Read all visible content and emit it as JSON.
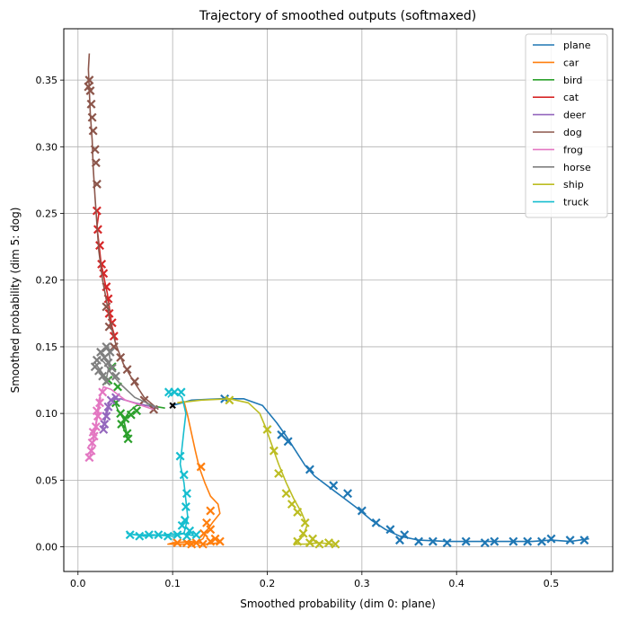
{
  "chart_data": {
    "type": "line",
    "title": "Trajectory of smoothed outputs (softmaxed)",
    "xlabel": "Smoothed probability (dim 0: plane)",
    "ylabel": "Smoothed probability (dim 5: dog)",
    "xlim": [
      -0.015,
      0.565
    ],
    "ylim": [
      -0.0185,
      0.3885
    ],
    "xticks": [
      0.0,
      0.1,
      0.2,
      0.3,
      0.4,
      0.5
    ],
    "xtick_labels": [
      "0.0",
      "0.1",
      "0.2",
      "0.3",
      "0.4",
      "0.5"
    ],
    "yticks": [
      0.0,
      0.05,
      0.1,
      0.15,
      0.2,
      0.25,
      0.3,
      0.35
    ],
    "ytick_labels": [
      "0.00",
      "0.05",
      "0.10",
      "0.15",
      "0.20",
      "0.25",
      "0.30",
      "0.35"
    ],
    "grid": true,
    "legend_position": "top-right",
    "markers": "x",
    "series": [
      {
        "name": "plane",
        "color": "#1f77b4",
        "points": [
          [
            0.1,
            0.106
          ],
          [
            0.12,
            0.11
          ],
          [
            0.15,
            0.111
          ],
          [
            0.175,
            0.111
          ],
          [
            0.195,
            0.106
          ],
          [
            0.21,
            0.093
          ],
          [
            0.22,
            0.083
          ],
          [
            0.23,
            0.072
          ],
          [
            0.24,
            0.061
          ],
          [
            0.25,
            0.053
          ],
          [
            0.265,
            0.045
          ],
          [
            0.28,
            0.037
          ],
          [
            0.295,
            0.029
          ],
          [
            0.31,
            0.02
          ],
          [
            0.325,
            0.013
          ],
          [
            0.34,
            0.008
          ],
          [
            0.36,
            0.005
          ],
          [
            0.39,
            0.004
          ],
          [
            0.42,
            0.004
          ],
          [
            0.45,
            0.004
          ],
          [
            0.48,
            0.004
          ],
          [
            0.5,
            0.005
          ],
          [
            0.52,
            0.004
          ],
          [
            0.54,
            0.006
          ]
        ],
        "marker_points": [
          [
            0.155,
            0.111
          ],
          [
            0.215,
            0.084
          ],
          [
            0.222,
            0.079
          ],
          [
            0.245,
            0.058
          ],
          [
            0.27,
            0.046
          ],
          [
            0.285,
            0.04
          ],
          [
            0.3,
            0.027
          ],
          [
            0.315,
            0.018
          ],
          [
            0.33,
            0.013
          ],
          [
            0.345,
            0.009
          ],
          [
            0.34,
            0.005
          ],
          [
            0.36,
            0.004
          ],
          [
            0.375,
            0.004
          ],
          [
            0.39,
            0.003
          ],
          [
            0.41,
            0.004
          ],
          [
            0.43,
            0.003
          ],
          [
            0.44,
            0.004
          ],
          [
            0.46,
            0.004
          ],
          [
            0.475,
            0.004
          ],
          [
            0.49,
            0.004
          ],
          [
            0.5,
            0.006
          ],
          [
            0.52,
            0.005
          ],
          [
            0.535,
            0.005
          ]
        ]
      },
      {
        "name": "car",
        "color": "#ff7f0e",
        "points": [
          [
            0.105,
            0.108
          ],
          [
            0.112,
            0.109
          ],
          [
            0.116,
            0.098
          ],
          [
            0.12,
            0.085
          ],
          [
            0.124,
            0.072
          ],
          [
            0.128,
            0.06
          ],
          [
            0.134,
            0.048
          ],
          [
            0.14,
            0.038
          ],
          [
            0.148,
            0.032
          ],
          [
            0.15,
            0.025
          ],
          [
            0.142,
            0.018
          ],
          [
            0.136,
            0.012
          ],
          [
            0.132,
            0.006
          ],
          [
            0.125,
            0.003
          ],
          [
            0.11,
            0.002
          ],
          [
            0.095,
            0.002
          ],
          [
            0.1,
            0.003
          ],
          [
            0.12,
            0.004
          ],
          [
            0.135,
            0.002
          ],
          [
            0.15,
            0.003
          ]
        ],
        "marker_points": [
          [
            0.13,
            0.06
          ],
          [
            0.14,
            0.027
          ],
          [
            0.136,
            0.018
          ],
          [
            0.14,
            0.013
          ],
          [
            0.133,
            0.01
          ],
          [
            0.145,
            0.006
          ],
          [
            0.125,
            0.003
          ],
          [
            0.115,
            0.003
          ],
          [
            0.105,
            0.003
          ],
          [
            0.132,
            0.002
          ],
          [
            0.14,
            0.004
          ],
          [
            0.15,
            0.004
          ],
          [
            0.12,
            0.002
          ]
        ]
      },
      {
        "name": "bird",
        "color": "#2ca02c",
        "points": [
          [
            0.092,
            0.104
          ],
          [
            0.075,
            0.106
          ],
          [
            0.062,
            0.106
          ],
          [
            0.055,
            0.102
          ],
          [
            0.05,
            0.097
          ],
          [
            0.046,
            0.092
          ],
          [
            0.05,
            0.086
          ],
          [
            0.053,
            0.081
          ],
          [
            0.048,
            0.096
          ],
          [
            0.042,
            0.103
          ],
          [
            0.038,
            0.11
          ]
        ],
        "marker_points": [
          [
            0.062,
            0.102
          ],
          [
            0.056,
            0.099
          ],
          [
            0.05,
            0.096
          ],
          [
            0.046,
            0.092
          ],
          [
            0.052,
            0.085
          ],
          [
            0.053,
            0.081
          ],
          [
            0.045,
            0.1
          ],
          [
            0.04,
            0.108
          ],
          [
            0.042,
            0.12
          ],
          [
            0.036,
            0.135
          ],
          [
            0.032,
            0.125
          ]
        ]
      },
      {
        "name": "cat",
        "color": "#d62728",
        "points": [
          [
            0.022,
            0.25
          ],
          [
            0.02,
            0.24
          ],
          [
            0.022,
            0.228
          ],
          [
            0.024,
            0.215
          ],
          [
            0.028,
            0.2
          ],
          [
            0.031,
            0.19
          ],
          [
            0.034,
            0.175
          ],
          [
            0.036,
            0.165
          ],
          [
            0.04,
            0.155
          ]
        ],
        "marker_points": [
          [
            0.02,
            0.252
          ],
          [
            0.021,
            0.238
          ],
          [
            0.023,
            0.226
          ],
          [
            0.025,
            0.212
          ],
          [
            0.027,
            0.205
          ],
          [
            0.03,
            0.195
          ],
          [
            0.032,
            0.186
          ],
          [
            0.033,
            0.175
          ],
          [
            0.036,
            0.168
          ],
          [
            0.038,
            0.158
          ]
        ]
      },
      {
        "name": "deer",
        "color": "#9467bd",
        "points": [
          [
            0.085,
            0.104
          ],
          [
            0.06,
            0.108
          ],
          [
            0.045,
            0.111
          ],
          [
            0.034,
            0.11
          ],
          [
            0.03,
            0.102
          ],
          [
            0.028,
            0.094
          ],
          [
            0.026,
            0.088
          ],
          [
            0.03,
            0.099
          ],
          [
            0.034,
            0.107
          ]
        ],
        "marker_points": [
          [
            0.032,
            0.105
          ],
          [
            0.03,
            0.098
          ],
          [
            0.028,
            0.092
          ],
          [
            0.027,
            0.088
          ],
          [
            0.035,
            0.11
          ],
          [
            0.04,
            0.112
          ]
        ]
      },
      {
        "name": "dog",
        "color": "#8c564b",
        "points": [
          [
            0.085,
            0.103
          ],
          [
            0.07,
            0.112
          ],
          [
            0.058,
            0.125
          ],
          [
            0.048,
            0.137
          ],
          [
            0.04,
            0.152
          ],
          [
            0.034,
            0.168
          ],
          [
            0.03,
            0.185
          ],
          [
            0.026,
            0.2
          ],
          [
            0.022,
            0.222
          ],
          [
            0.02,
            0.242
          ],
          [
            0.018,
            0.262
          ],
          [
            0.016,
            0.285
          ],
          [
            0.015,
            0.305
          ],
          [
            0.013,
            0.325
          ],
          [
            0.012,
            0.342
          ],
          [
            0.011,
            0.358
          ],
          [
            0.012,
            0.37
          ]
        ],
        "marker_points": [
          [
            0.08,
            0.103
          ],
          [
            0.07,
            0.11
          ],
          [
            0.06,
            0.124
          ],
          [
            0.052,
            0.133
          ],
          [
            0.045,
            0.142
          ],
          [
            0.038,
            0.15
          ],
          [
            0.033,
            0.165
          ],
          [
            0.03,
            0.18
          ],
          [
            0.02,
            0.272
          ],
          [
            0.019,
            0.288
          ],
          [
            0.018,
            0.298
          ],
          [
            0.016,
            0.312
          ],
          [
            0.015,
            0.322
          ],
          [
            0.014,
            0.332
          ],
          [
            0.013,
            0.342
          ],
          [
            0.012,
            0.35
          ],
          [
            0.011,
            0.345
          ]
        ]
      },
      {
        "name": "frog",
        "color": "#e377c2",
        "points": [
          [
            0.08,
            0.103
          ],
          [
            0.05,
            0.11
          ],
          [
            0.035,
            0.118
          ],
          [
            0.027,
            0.12
          ],
          [
            0.022,
            0.11
          ],
          [
            0.02,
            0.098
          ],
          [
            0.018,
            0.088
          ],
          [
            0.016,
            0.08
          ],
          [
            0.014,
            0.072
          ],
          [
            0.012,
            0.066
          ],
          [
            0.015,
            0.075
          ],
          [
            0.02,
            0.095
          ],
          [
            0.024,
            0.112
          ]
        ],
        "marker_points": [
          [
            0.026,
            0.116
          ],
          [
            0.023,
            0.108
          ],
          [
            0.021,
            0.098
          ],
          [
            0.019,
            0.09
          ],
          [
            0.017,
            0.083
          ],
          [
            0.015,
            0.078
          ],
          [
            0.014,
            0.072
          ],
          [
            0.012,
            0.067
          ],
          [
            0.016,
            0.086
          ],
          [
            0.02,
            0.102
          ]
        ]
      },
      {
        "name": "horse",
        "color": "#7f7f7f",
        "points": [
          [
            0.085,
            0.104
          ],
          [
            0.06,
            0.112
          ],
          [
            0.045,
            0.122
          ],
          [
            0.035,
            0.13
          ],
          [
            0.028,
            0.138
          ],
          [
            0.022,
            0.142
          ],
          [
            0.018,
            0.138
          ],
          [
            0.024,
            0.132
          ],
          [
            0.03,
            0.126
          ],
          [
            0.034,
            0.14
          ],
          [
            0.032,
            0.15
          ],
          [
            0.026,
            0.146
          ]
        ],
        "marker_points": [
          [
            0.04,
            0.128
          ],
          [
            0.036,
            0.134
          ],
          [
            0.032,
            0.138
          ],
          [
            0.028,
            0.142
          ],
          [
            0.024,
            0.146
          ],
          [
            0.02,
            0.14
          ],
          [
            0.018,
            0.135
          ],
          [
            0.026,
            0.128
          ],
          [
            0.03,
            0.124
          ],
          [
            0.034,
            0.146
          ],
          [
            0.03,
            0.15
          ],
          [
            0.022,
            0.132
          ]
        ]
      },
      {
        "name": "ship",
        "color": "#bcbd22",
        "points": [
          [
            0.105,
            0.108
          ],
          [
            0.13,
            0.11
          ],
          [
            0.16,
            0.111
          ],
          [
            0.18,
            0.108
          ],
          [
            0.192,
            0.1
          ],
          [
            0.198,
            0.09
          ],
          [
            0.204,
            0.078
          ],
          [
            0.212,
            0.062
          ],
          [
            0.22,
            0.048
          ],
          [
            0.228,
            0.036
          ],
          [
            0.236,
            0.026
          ],
          [
            0.242,
            0.016
          ],
          [
            0.238,
            0.008
          ],
          [
            0.23,
            0.004
          ],
          [
            0.228,
            0.002
          ],
          [
            0.24,
            0.002
          ],
          [
            0.255,
            0.003
          ],
          [
            0.27,
            0.002
          ]
        ],
        "marker_points": [
          [
            0.16,
            0.11
          ],
          [
            0.2,
            0.088
          ],
          [
            0.207,
            0.072
          ],
          [
            0.212,
            0.055
          ],
          [
            0.22,
            0.04
          ],
          [
            0.226,
            0.032
          ],
          [
            0.232,
            0.026
          ],
          [
            0.24,
            0.018
          ],
          [
            0.238,
            0.01
          ],
          [
            0.232,
            0.004
          ],
          [
            0.245,
            0.003
          ],
          [
            0.255,
            0.002
          ],
          [
            0.265,
            0.003
          ],
          [
            0.272,
            0.002
          ],
          [
            0.248,
            0.006
          ]
        ]
      },
      {
        "name": "truck",
        "color": "#17becf",
        "points": [
          [
            0.095,
            0.112
          ],
          [
            0.1,
            0.116
          ],
          [
            0.105,
            0.115
          ],
          [
            0.11,
            0.112
          ],
          [
            0.114,
            0.1
          ],
          [
            0.112,
            0.088
          ],
          [
            0.11,
            0.075
          ],
          [
            0.108,
            0.062
          ],
          [
            0.112,
            0.048
          ],
          [
            0.114,
            0.035
          ],
          [
            0.116,
            0.022
          ],
          [
            0.112,
            0.01
          ],
          [
            0.1,
            0.008
          ],
          [
            0.08,
            0.009
          ],
          [
            0.06,
            0.009
          ],
          [
            0.052,
            0.01
          ],
          [
            0.07,
            0.008
          ],
          [
            0.09,
            0.009
          ],
          [
            0.11,
            0.01
          ],
          [
            0.125,
            0.008
          ]
        ],
        "marker_points": [
          [
            0.096,
            0.116
          ],
          [
            0.102,
            0.116
          ],
          [
            0.109,
            0.116
          ],
          [
            0.108,
            0.068
          ],
          [
            0.112,
            0.054
          ],
          [
            0.115,
            0.04
          ],
          [
            0.114,
            0.03
          ],
          [
            0.113,
            0.02
          ],
          [
            0.118,
            0.012
          ],
          [
            0.11,
            0.016
          ],
          [
            0.055,
            0.009
          ],
          [
            0.065,
            0.008
          ],
          [
            0.075,
            0.009
          ],
          [
            0.085,
            0.009
          ],
          [
            0.095,
            0.008
          ],
          [
            0.105,
            0.009
          ],
          [
            0.115,
            0.008
          ],
          [
            0.125,
            0.009
          ]
        ]
      }
    ]
  }
}
